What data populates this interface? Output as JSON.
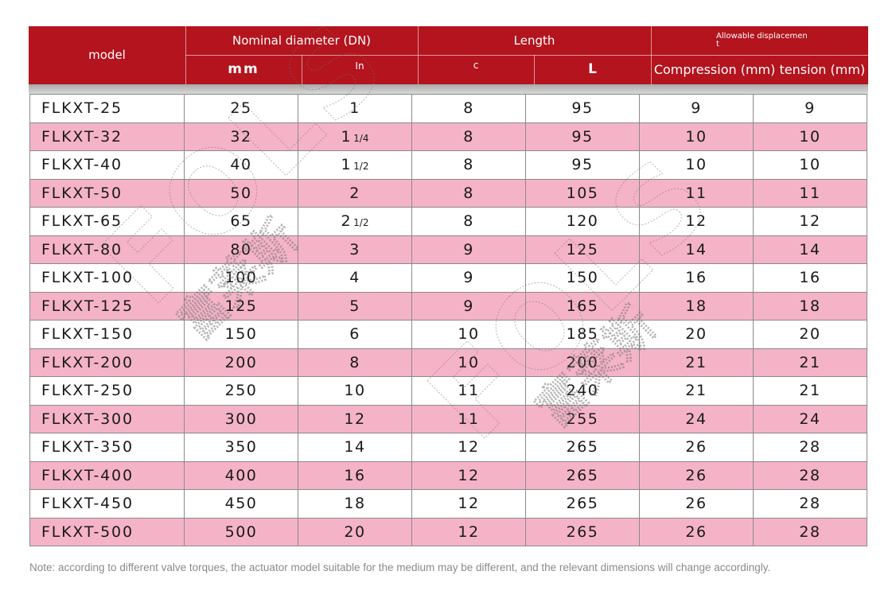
{
  "header": {
    "model": "model",
    "nominal_diameter": "Nominal diameter (DN)",
    "mm": "mm",
    "in": "In",
    "length": "Length",
    "c": "c",
    "L": "L",
    "displacement_line1": "Allowable displacemen",
    "displacement_line2": "t",
    "compression": "Compression (mm)",
    "tension": "tension (mm)"
  },
  "rows": [
    {
      "model": "FLKXT-25",
      "mm": "25",
      "in_whole": "1",
      "in_frac": "",
      "c": "8",
      "L": "95",
      "compression": "9",
      "tension": "9"
    },
    {
      "model": "FLKXT-32",
      "mm": "32",
      "in_whole": "1",
      "in_frac": "1/4",
      "c": "8",
      "L": "95",
      "compression": "10",
      "tension": "10"
    },
    {
      "model": "FLKXT-40",
      "mm": "40",
      "in_whole": "1",
      "in_frac": "1/2",
      "c": "8",
      "L": "95",
      "compression": "10",
      "tension": "10"
    },
    {
      "model": "FLKXT-50",
      "mm": "50",
      "in_whole": "2",
      "in_frac": "",
      "c": "8",
      "L": "105",
      "compression": "11",
      "tension": "11"
    },
    {
      "model": "FLKXT-65",
      "mm": "65",
      "in_whole": "2",
      "in_frac": "1/2",
      "c": "8",
      "L": "120",
      "compression": "12",
      "tension": "12"
    },
    {
      "model": "FLKXT-80",
      "mm": "80",
      "in_whole": "3",
      "in_frac": "",
      "c": "9",
      "L": "125",
      "compression": "14",
      "tension": "14"
    },
    {
      "model": "FLKXT-100",
      "mm": "100",
      "in_whole": "4",
      "in_frac": "",
      "c": "9",
      "L": "150",
      "compression": "16",
      "tension": "16"
    },
    {
      "model": "FLKXT-125",
      "mm": "125",
      "in_whole": "5",
      "in_frac": "",
      "c": "9",
      "L": "165",
      "compression": "18",
      "tension": "18"
    },
    {
      "model": "FLKXT-150",
      "mm": "150",
      "in_whole": "6",
      "in_frac": "",
      "c": "10",
      "L": "185",
      "compression": "20",
      "tension": "20"
    },
    {
      "model": "FLKXT-200",
      "mm": "200",
      "in_whole": "8",
      "in_frac": "",
      "c": "10",
      "L": "200",
      "compression": "21",
      "tension": "21"
    },
    {
      "model": "FLKXT-250",
      "mm": "250",
      "in_whole": "10",
      "in_frac": "",
      "c": "11",
      "L": "240",
      "compression": "21",
      "tension": "21"
    },
    {
      "model": "FLKXT-300",
      "mm": "300",
      "in_whole": "12",
      "in_frac": "",
      "c": "11",
      "L": "255",
      "compression": "24",
      "tension": "24"
    },
    {
      "model": "FLKXT-350",
      "mm": "350",
      "in_whole": "14",
      "in_frac": "",
      "c": "12",
      "L": "265",
      "compression": "26",
      "tension": "28"
    },
    {
      "model": "FLKXT-400",
      "mm": "400",
      "in_whole": "16",
      "in_frac": "",
      "c": "12",
      "L": "265",
      "compression": "26",
      "tension": "28"
    },
    {
      "model": "FLKXT-450",
      "mm": "450",
      "in_whole": "18",
      "in_frac": "",
      "c": "12",
      "L": "265",
      "compression": "26",
      "tension": "28"
    },
    {
      "model": "FLKXT-500",
      "mm": "500",
      "in_whole": "20",
      "in_frac": "",
      "c": "12",
      "L": "265",
      "compression": "26",
      "tension": "28"
    }
  ],
  "note": "Note: according to different valve torques, the actuator model suitable for the medium may be different, and the relevant dimensions will change accordingly.",
  "watermark": {
    "letters": "FOLS",
    "hanzi": "富莱斯"
  },
  "colors": {
    "header": "#b3141e",
    "pink_row": "#f5b3c8",
    "white_row": "#ffffff",
    "border": "#8a8a8a"
  }
}
